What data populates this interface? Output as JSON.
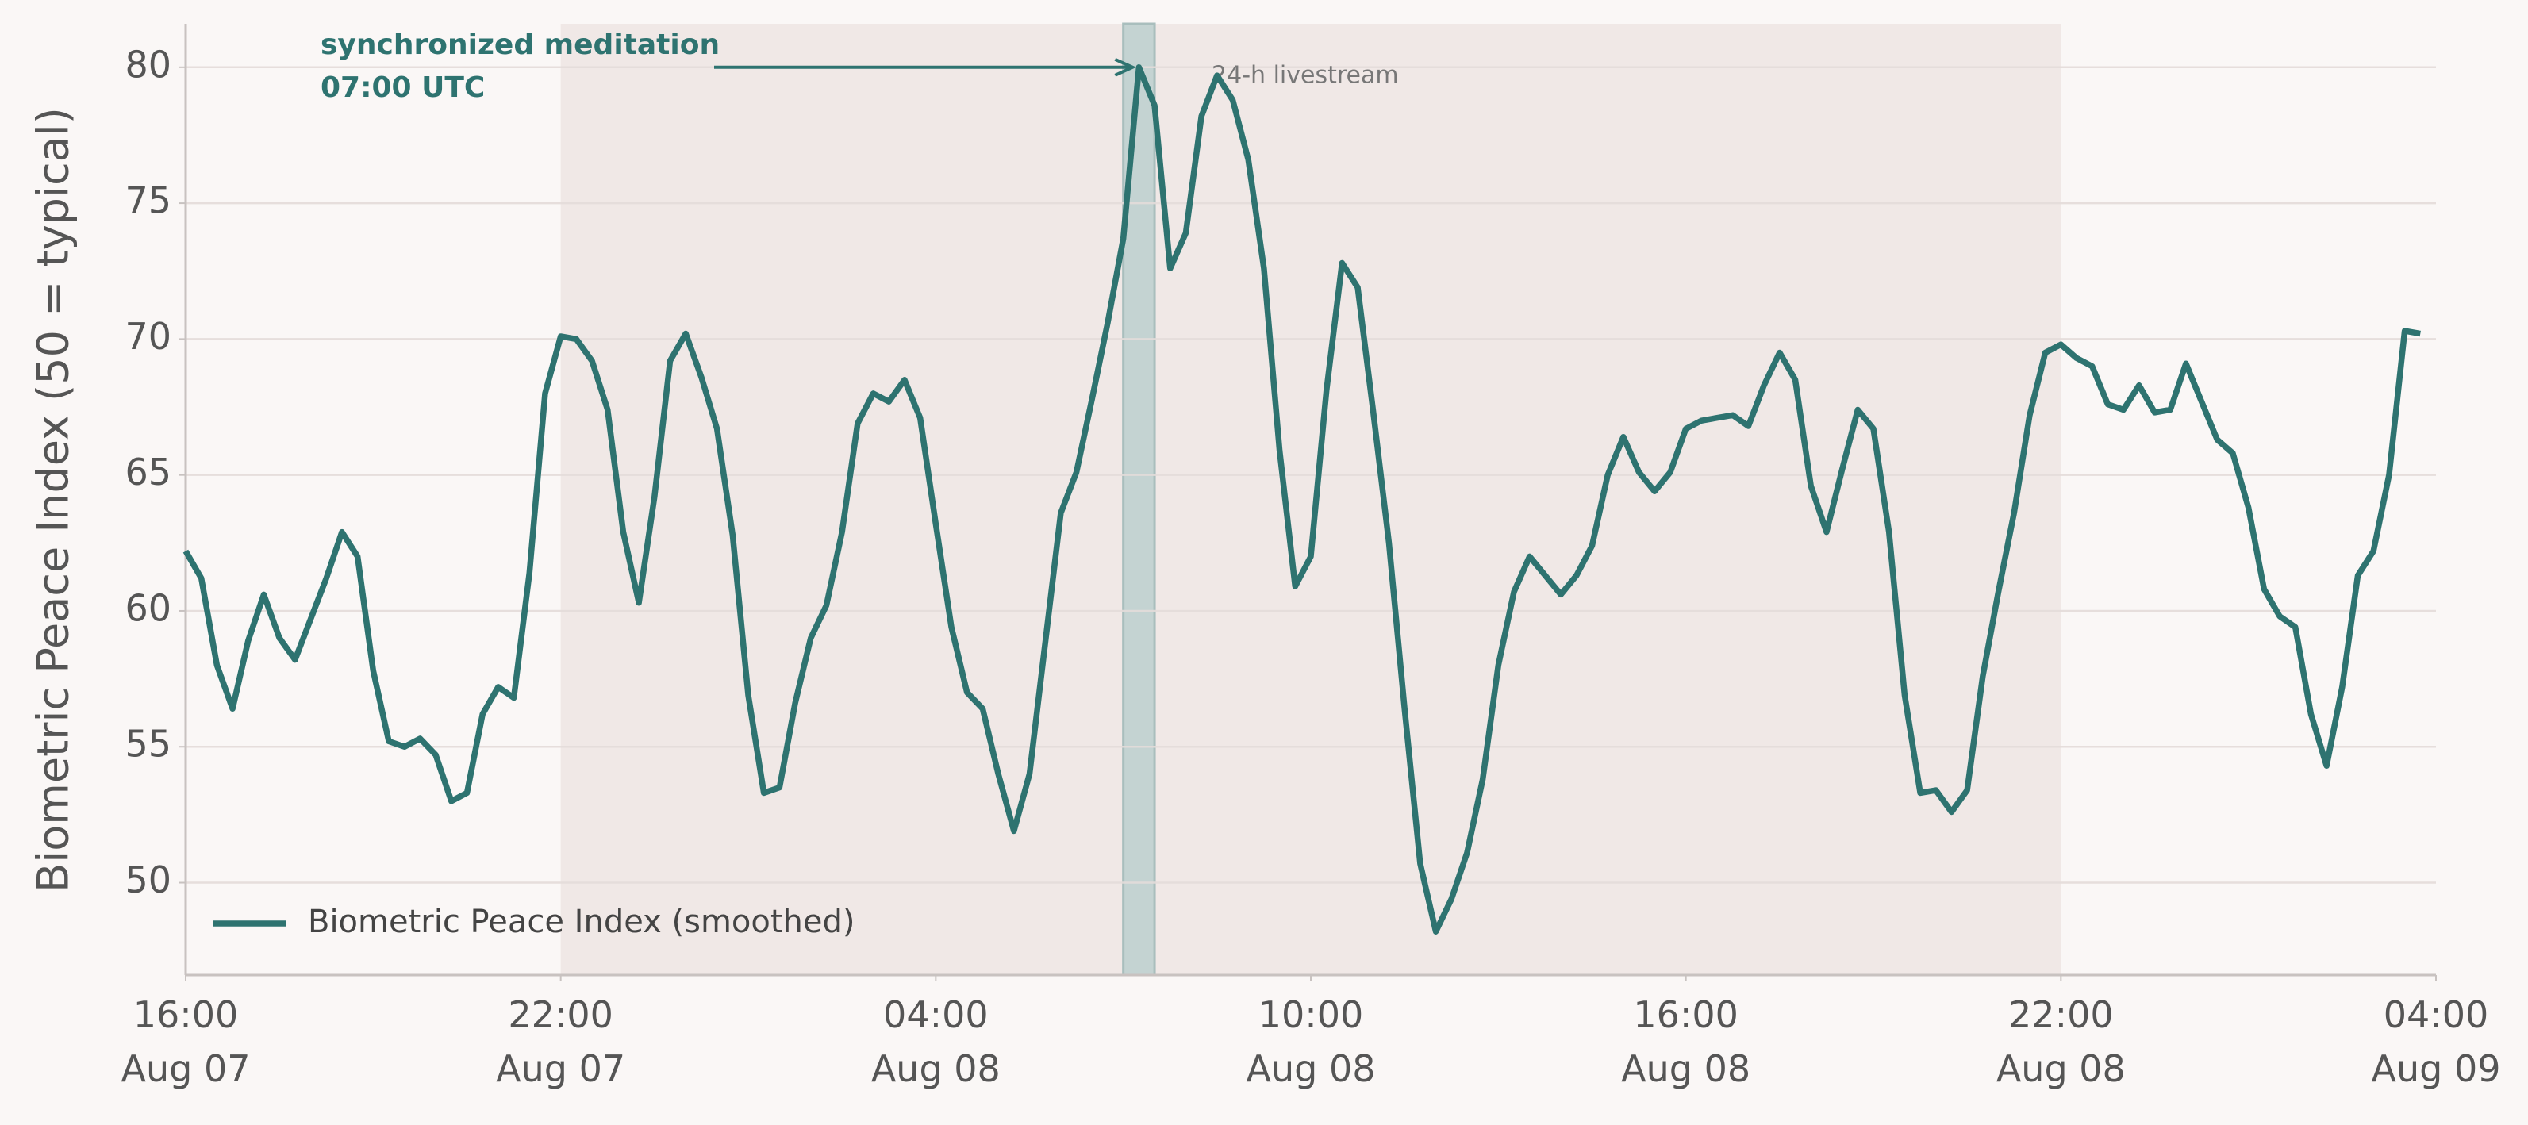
{
  "chart_data": {
    "type": "line",
    "y_label": "Biometric Peace Index (50 = typical)",
    "x": [
      "Aug 07 16:00",
      "Aug 07 16:15",
      "Aug 07 16:30",
      "Aug 07 16:45",
      "Aug 07 17:00",
      "Aug 07 17:15",
      "Aug 07 17:30",
      "Aug 07 17:45",
      "Aug 07 18:00",
      "Aug 07 18:15",
      "Aug 07 18:30",
      "Aug 07 18:45",
      "Aug 07 19:00",
      "Aug 07 19:15",
      "Aug 07 19:30",
      "Aug 07 19:45",
      "Aug 07 20:00",
      "Aug 07 20:15",
      "Aug 07 20:30",
      "Aug 07 20:45",
      "Aug 07 21:00",
      "Aug 07 21:15",
      "Aug 07 21:30",
      "Aug 07 21:45",
      "Aug 07 22:00",
      "Aug 07 22:15",
      "Aug 07 22:30",
      "Aug 07 22:45",
      "Aug 07 23:00",
      "Aug 07 23:15",
      "Aug 07 23:30",
      "Aug 07 23:45",
      "Aug 08 00:00",
      "Aug 08 00:15",
      "Aug 08 00:30",
      "Aug 08 00:45",
      "Aug 08 01:00",
      "Aug 08 01:15",
      "Aug 08 01:30",
      "Aug 08 01:45",
      "Aug 08 02:00",
      "Aug 08 02:15",
      "Aug 08 02:30",
      "Aug 08 02:45",
      "Aug 08 03:00",
      "Aug 08 03:15",
      "Aug 08 03:30",
      "Aug 08 03:45",
      "Aug 08 04:00",
      "Aug 08 04:15",
      "Aug 08 04:30",
      "Aug 08 04:45",
      "Aug 08 05:00",
      "Aug 08 05:15",
      "Aug 08 05:30",
      "Aug 08 05:45",
      "Aug 08 06:00",
      "Aug 08 06:15",
      "Aug 08 06:30",
      "Aug 08 06:45",
      "Aug 08 07:00",
      "Aug 08 07:15",
      "Aug 08 07:30",
      "Aug 08 07:45",
      "Aug 08 08:00",
      "Aug 08 08:15",
      "Aug 08 08:30",
      "Aug 08 08:45",
      "Aug 08 09:00",
      "Aug 08 09:15",
      "Aug 08 09:30",
      "Aug 08 09:45",
      "Aug 08 10:00",
      "Aug 08 10:15",
      "Aug 08 10:30",
      "Aug 08 10:45",
      "Aug 08 11:00",
      "Aug 08 11:15",
      "Aug 08 11:30",
      "Aug 08 11:45",
      "Aug 08 12:00",
      "Aug 08 12:15",
      "Aug 08 12:30",
      "Aug 08 12:45",
      "Aug 08 13:00",
      "Aug 08 13:15",
      "Aug 08 13:30",
      "Aug 08 13:45",
      "Aug 08 14:00",
      "Aug 08 14:15",
      "Aug 08 14:30",
      "Aug 08 14:45",
      "Aug 08 15:00",
      "Aug 08 15:15",
      "Aug 08 15:30",
      "Aug 08 15:45",
      "Aug 08 16:00",
      "Aug 08 16:15",
      "Aug 08 16:30",
      "Aug 08 16:45",
      "Aug 08 17:00",
      "Aug 08 17:15",
      "Aug 08 17:30",
      "Aug 08 17:45",
      "Aug 08 18:00",
      "Aug 08 18:15",
      "Aug 08 18:30",
      "Aug 08 18:45",
      "Aug 08 19:00",
      "Aug 08 19:15",
      "Aug 08 19:30",
      "Aug 08 19:45",
      "Aug 08 20:00",
      "Aug 08 20:15",
      "Aug 08 20:30",
      "Aug 08 20:45",
      "Aug 08 21:00",
      "Aug 08 21:15",
      "Aug 08 21:30",
      "Aug 08 21:45",
      "Aug 08 22:00",
      "Aug 08 22:15",
      "Aug 08 22:30",
      "Aug 08 22:45",
      "Aug 08 23:00",
      "Aug 08 23:15",
      "Aug 08 23:30",
      "Aug 08 23:45",
      "Aug 09 00:00",
      "Aug 09 00:15",
      "Aug 09 00:30",
      "Aug 09 00:45",
      "Aug 09 01:00",
      "Aug 09 01:15",
      "Aug 09 01:30",
      "Aug 09 01:45",
      "Aug 09 02:00",
      "Aug 09 02:15",
      "Aug 09 02:30",
      "Aug 09 02:45",
      "Aug 09 03:00",
      "Aug 09 03:15",
      "Aug 09 03:30",
      "Aug 09 03:45"
    ],
    "series": [
      {
        "name": "Biometric Peace Index (smoothed)",
        "color": "#2e7370",
        "values": [
          62.2,
          61.2,
          58.0,
          56.4,
          58.9,
          60.6,
          59.0,
          58.2,
          59.7,
          61.2,
          62.9,
          62.0,
          57.8,
          55.2,
          55.0,
          55.3,
          54.7,
          53.0,
          53.3,
          56.2,
          57.2,
          56.8,
          61.4,
          68.0,
          70.1,
          70.0,
          69.2,
          67.4,
          62.9,
          60.3,
          64.2,
          69.2,
          70.2,
          68.6,
          66.7,
          62.8,
          56.9,
          53.3,
          53.5,
          56.6,
          59.0,
          60.2,
          62.9,
          66.9,
          68.0,
          67.7,
          68.5,
          67.1,
          63.2,
          59.4,
          57.0,
          56.4,
          54.0,
          51.9,
          54.0,
          58.8,
          63.6,
          65.1,
          67.8,
          70.6,
          73.7,
          80.0,
          78.6,
          72.6,
          73.9,
          78.2,
          79.7,
          78.8,
          76.6,
          72.6,
          65.9,
          60.9,
          62.0,
          68.1,
          72.8,
          71.9,
          67.3,
          62.5,
          56.4,
          50.7,
          48.2,
          49.4,
          51.1,
          53.8,
          58.0,
          60.7,
          62.0,
          61.3,
          60.6,
          61.3,
          62.4,
          65.0,
          66.4,
          65.1,
          64.4,
          65.1,
          66.7,
          67.0,
          67.1,
          67.2,
          66.8,
          68.3,
          69.5,
          68.5,
          64.6,
          62.9,
          65.2,
          67.4,
          66.7,
          62.9,
          56.9,
          53.3,
          53.4,
          52.6,
          53.4,
          57.6,
          60.7,
          63.6,
          67.2,
          69.5,
          69.8,
          69.3,
          69.0,
          67.6,
          67.4,
          68.3,
          67.3,
          67.4,
          69.1,
          67.7,
          66.3,
          65.8,
          63.8,
          60.8,
          59.8,
          59.4,
          56.2,
          54.3,
          57.2,
          61.3,
          62.2,
          65.0,
          70.3,
          70.2
        ]
      }
    ],
    "xlim": [
      "Aug 07 16:00",
      "Aug 09 04:00"
    ],
    "xticks": [
      {
        "value": "Aug 07 16:00",
        "label": "16:00\nAug 07"
      },
      {
        "value": "Aug 07 22:00",
        "label": "22:00\nAug 07"
      },
      {
        "value": "Aug 08 04:00",
        "label": "04:00\nAug 08"
      },
      {
        "value": "Aug 08 10:00",
        "label": "10:00\nAug 08"
      },
      {
        "value": "Aug 08 16:00",
        "label": "16:00\nAug 08"
      },
      {
        "value": "Aug 08 22:00",
        "label": "22:00\nAug 08"
      },
      {
        "value": "Aug 09 04:00",
        "label": "04:00\nAug 09"
      }
    ],
    "ylim": [
      46.6,
      81.6
    ],
    "yticks": [
      50,
      55,
      60,
      65,
      70,
      75,
      80
    ],
    "grid": true,
    "legend": "lower left",
    "spans": [
      {
        "start": "Aug 07 22:00",
        "end": "Aug 08 22:00",
        "label": "24-h livestream",
        "color": "#f0e8e6"
      },
      {
        "start": "Aug 08 07:00",
        "end": "Aug 08 07:30",
        "color": "#c4d3d2"
      }
    ],
    "annotation": {
      "text": "synchronized meditation\n07:00 UTC"
    }
  }
}
